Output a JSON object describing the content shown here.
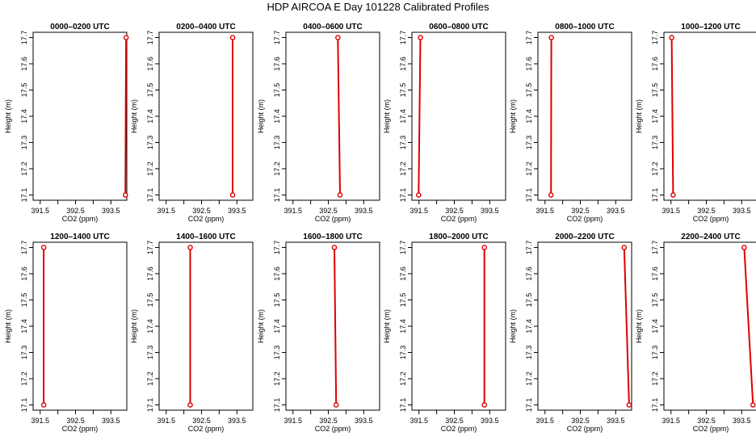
{
  "title": "HDP AIRCOA E  Day 101228  Calibrated Profiles",
  "colors": {
    "profile": "#dd0000",
    "axis": "#000000"
  },
  "chart_data": [
    {
      "type": "line",
      "title": "0000–0200 UTC",
      "xlabel": "CO2 (ppm)",
      "ylabel": "Height (m)",
      "xlim": [
        391.3,
        393.95
      ],
      "ylim": [
        17.08,
        17.72
      ],
      "xticks": [
        "391.5",
        "392.5",
        "393.5"
      ],
      "xticks_minor": [
        392.0,
        393.0
      ],
      "yticks": [
        "17.1",
        "17.2",
        "17.3",
        "17.4",
        "17.5",
        "17.6",
        "17.7"
      ],
      "series": [
        {
          "x": [
            393.91,
            393.93
          ],
          "y": [
            17.1,
            17.7
          ],
          "markers": "endpoints"
        }
      ]
    },
    {
      "type": "line",
      "title": "0200–0400 UTC",
      "xlabel": "CO2 (ppm)",
      "ylabel": "Height (m)",
      "xlim": [
        391.3,
        393.95
      ],
      "ylim": [
        17.08,
        17.72
      ],
      "xticks": [
        "391.5",
        "392.5",
        "393.5"
      ],
      "xticks_minor": [
        392.0,
        393.0
      ],
      "yticks": [
        "17.1",
        "17.2",
        "17.3",
        "17.4",
        "17.5",
        "17.6",
        "17.7"
      ],
      "series": [
        {
          "x": [
            393.38,
            393.38
          ],
          "y": [
            17.1,
            17.7
          ],
          "markers": "endpoints"
        }
      ]
    },
    {
      "type": "line",
      "title": "0400–0600 UTC",
      "xlabel": "CO2 (ppm)",
      "ylabel": "Height (m)",
      "xlim": [
        391.3,
        393.95
      ],
      "ylim": [
        17.08,
        17.72
      ],
      "xticks": [
        "391.5",
        "392.5",
        "393.5"
      ],
      "xticks_minor": [
        392.0,
        393.0
      ],
      "yticks": [
        "17.1",
        "17.2",
        "17.3",
        "17.4",
        "17.5",
        "17.6",
        "17.7"
      ],
      "series": [
        {
          "x": [
            392.83,
            392.77
          ],
          "y": [
            17.1,
            17.7
          ],
          "markers": "endpoints"
        }
      ]
    },
    {
      "type": "line",
      "title": "0600–0800 UTC",
      "xlabel": "CO2 (ppm)",
      "ylabel": "Height (m)",
      "xlim": [
        391.3,
        393.95
      ],
      "ylim": [
        17.08,
        17.72
      ],
      "xticks": [
        "391.5",
        "392.5",
        "393.5"
      ],
      "xticks_minor": [
        392.0,
        393.0
      ],
      "yticks": [
        "17.1",
        "17.2",
        "17.3",
        "17.4",
        "17.5",
        "17.6",
        "17.7"
      ],
      "series": [
        {
          "x": [
            391.49,
            391.54
          ],
          "y": [
            17.1,
            17.7
          ],
          "markers": "endpoints"
        }
      ]
    },
    {
      "type": "line",
      "title": "0800–1000 UTC",
      "xlabel": "CO2 (ppm)",
      "ylabel": "Height (m)",
      "xlim": [
        391.3,
        393.95
      ],
      "ylim": [
        17.08,
        17.72
      ],
      "xticks": [
        "391.5",
        "392.5",
        "393.5"
      ],
      "xticks_minor": [
        392.0,
        393.0
      ],
      "yticks": [
        "17.1",
        "17.2",
        "17.3",
        "17.4",
        "17.5",
        "17.6",
        "17.7"
      ],
      "series": [
        {
          "x": [
            391.67,
            391.68
          ],
          "y": [
            17.1,
            17.7
          ],
          "markers": "endpoints"
        }
      ]
    },
    {
      "type": "line",
      "title": "1000–1200 UTC",
      "xlabel": "CO2 (ppm)",
      "ylabel": "Height (m)",
      "xlim": [
        391.3,
        393.95
      ],
      "ylim": [
        17.08,
        17.72
      ],
      "xticks": [
        "391.5",
        "392.5",
        "393.5"
      ],
      "xticks_minor": [
        392.0,
        393.0
      ],
      "yticks": [
        "17.1",
        "17.2",
        "17.3",
        "17.4",
        "17.5",
        "17.6",
        "17.7"
      ],
      "series": [
        {
          "x": [
            391.56,
            391.52
          ],
          "y": [
            17.1,
            17.7
          ],
          "markers": "endpoints"
        }
      ]
    },
    {
      "type": "line",
      "title": "1200–1400 UTC",
      "xlabel": "CO2 (ppm)",
      "ylabel": "Height (m)",
      "xlim": [
        391.3,
        393.95
      ],
      "ylim": [
        17.08,
        17.72
      ],
      "xticks": [
        "391.5",
        "392.5",
        "393.5"
      ],
      "xticks_minor": [
        392.0,
        393.0
      ],
      "yticks": [
        "17.1",
        "17.2",
        "17.3",
        "17.4",
        "17.5",
        "17.6",
        "17.7"
      ],
      "series": [
        {
          "x": [
            391.6,
            391.6
          ],
          "y": [
            17.1,
            17.7
          ],
          "markers": "endpoints"
        }
      ]
    },
    {
      "type": "line",
      "title": "1400–1600 UTC",
      "xlabel": "CO2 (ppm)",
      "ylabel": "Height (m)",
      "xlim": [
        391.3,
        393.95
      ],
      "ylim": [
        17.08,
        17.72
      ],
      "xticks": [
        "391.5",
        "392.5",
        "393.5"
      ],
      "xticks_minor": [
        392.0,
        393.0
      ],
      "yticks": [
        "17.1",
        "17.2",
        "17.3",
        "17.4",
        "17.5",
        "17.6",
        "17.7"
      ],
      "series": [
        {
          "x": [
            392.18,
            392.18
          ],
          "y": [
            17.1,
            17.7
          ],
          "markers": "endpoints"
        }
      ]
    },
    {
      "type": "line",
      "title": "1600–1800 UTC",
      "xlabel": "CO2 (ppm)",
      "ylabel": "Height (m)",
      "xlim": [
        391.3,
        393.95
      ],
      "ylim": [
        17.08,
        17.72
      ],
      "xticks": [
        "391.5",
        "392.5",
        "393.5"
      ],
      "xticks_minor": [
        392.0,
        393.0
      ],
      "yticks": [
        "17.1",
        "17.2",
        "17.3",
        "17.4",
        "17.5",
        "17.6",
        "17.7"
      ],
      "series": [
        {
          "x": [
            392.72,
            392.67
          ],
          "y": [
            17.1,
            17.7
          ],
          "markers": "endpoints"
        }
      ]
    },
    {
      "type": "line",
      "title": "1800–2000 UTC",
      "xlabel": "CO2 (ppm)",
      "ylabel": "Height (m)",
      "xlim": [
        391.3,
        393.95
      ],
      "ylim": [
        17.08,
        17.72
      ],
      "xticks": [
        "391.5",
        "392.5",
        "393.5"
      ],
      "xticks_minor": [
        392.0,
        393.0
      ],
      "yticks": [
        "17.1",
        "17.2",
        "17.3",
        "17.4",
        "17.5",
        "17.6",
        "17.7"
      ],
      "series": [
        {
          "x": [
            393.35,
            393.35
          ],
          "y": [
            17.1,
            17.7
          ],
          "markers": "endpoints"
        }
      ]
    },
    {
      "type": "line",
      "title": "2000–2200 UTC",
      "xlabel": "CO2 (ppm)",
      "ylabel": "Height (m)",
      "xlim": [
        391.3,
        393.95
      ],
      "ylim": [
        17.08,
        17.72
      ],
      "xticks": [
        "391.5",
        "392.5",
        "393.5"
      ],
      "xticks_minor": [
        392.0,
        393.0
      ],
      "yticks": [
        "17.1",
        "17.2",
        "17.3",
        "17.4",
        "17.5",
        "17.6",
        "17.7"
      ],
      "series": [
        {
          "x": [
            393.88,
            393.74
          ],
          "y": [
            17.1,
            17.7
          ],
          "markers": "endpoints"
        }
      ]
    },
    {
      "type": "line",
      "title": "2200–2400 UTC",
      "xlabel": "CO2 (ppm)",
      "ylabel": "Height (m)",
      "xlim": [
        391.3,
        393.95
      ],
      "ylim": [
        17.08,
        17.72
      ],
      "xticks": [
        "391.5",
        "392.5",
        "393.5"
      ],
      "xticks_minor": [
        392.0,
        393.0
      ],
      "yticks": [
        "17.1",
        "17.2",
        "17.3",
        "17.4",
        "17.5",
        "17.6",
        "17.7"
      ],
      "series": [
        {
          "x": [
            393.82,
            393.57
          ],
          "y": [
            17.1,
            17.7
          ],
          "markers": "endpoints"
        }
      ]
    }
  ]
}
